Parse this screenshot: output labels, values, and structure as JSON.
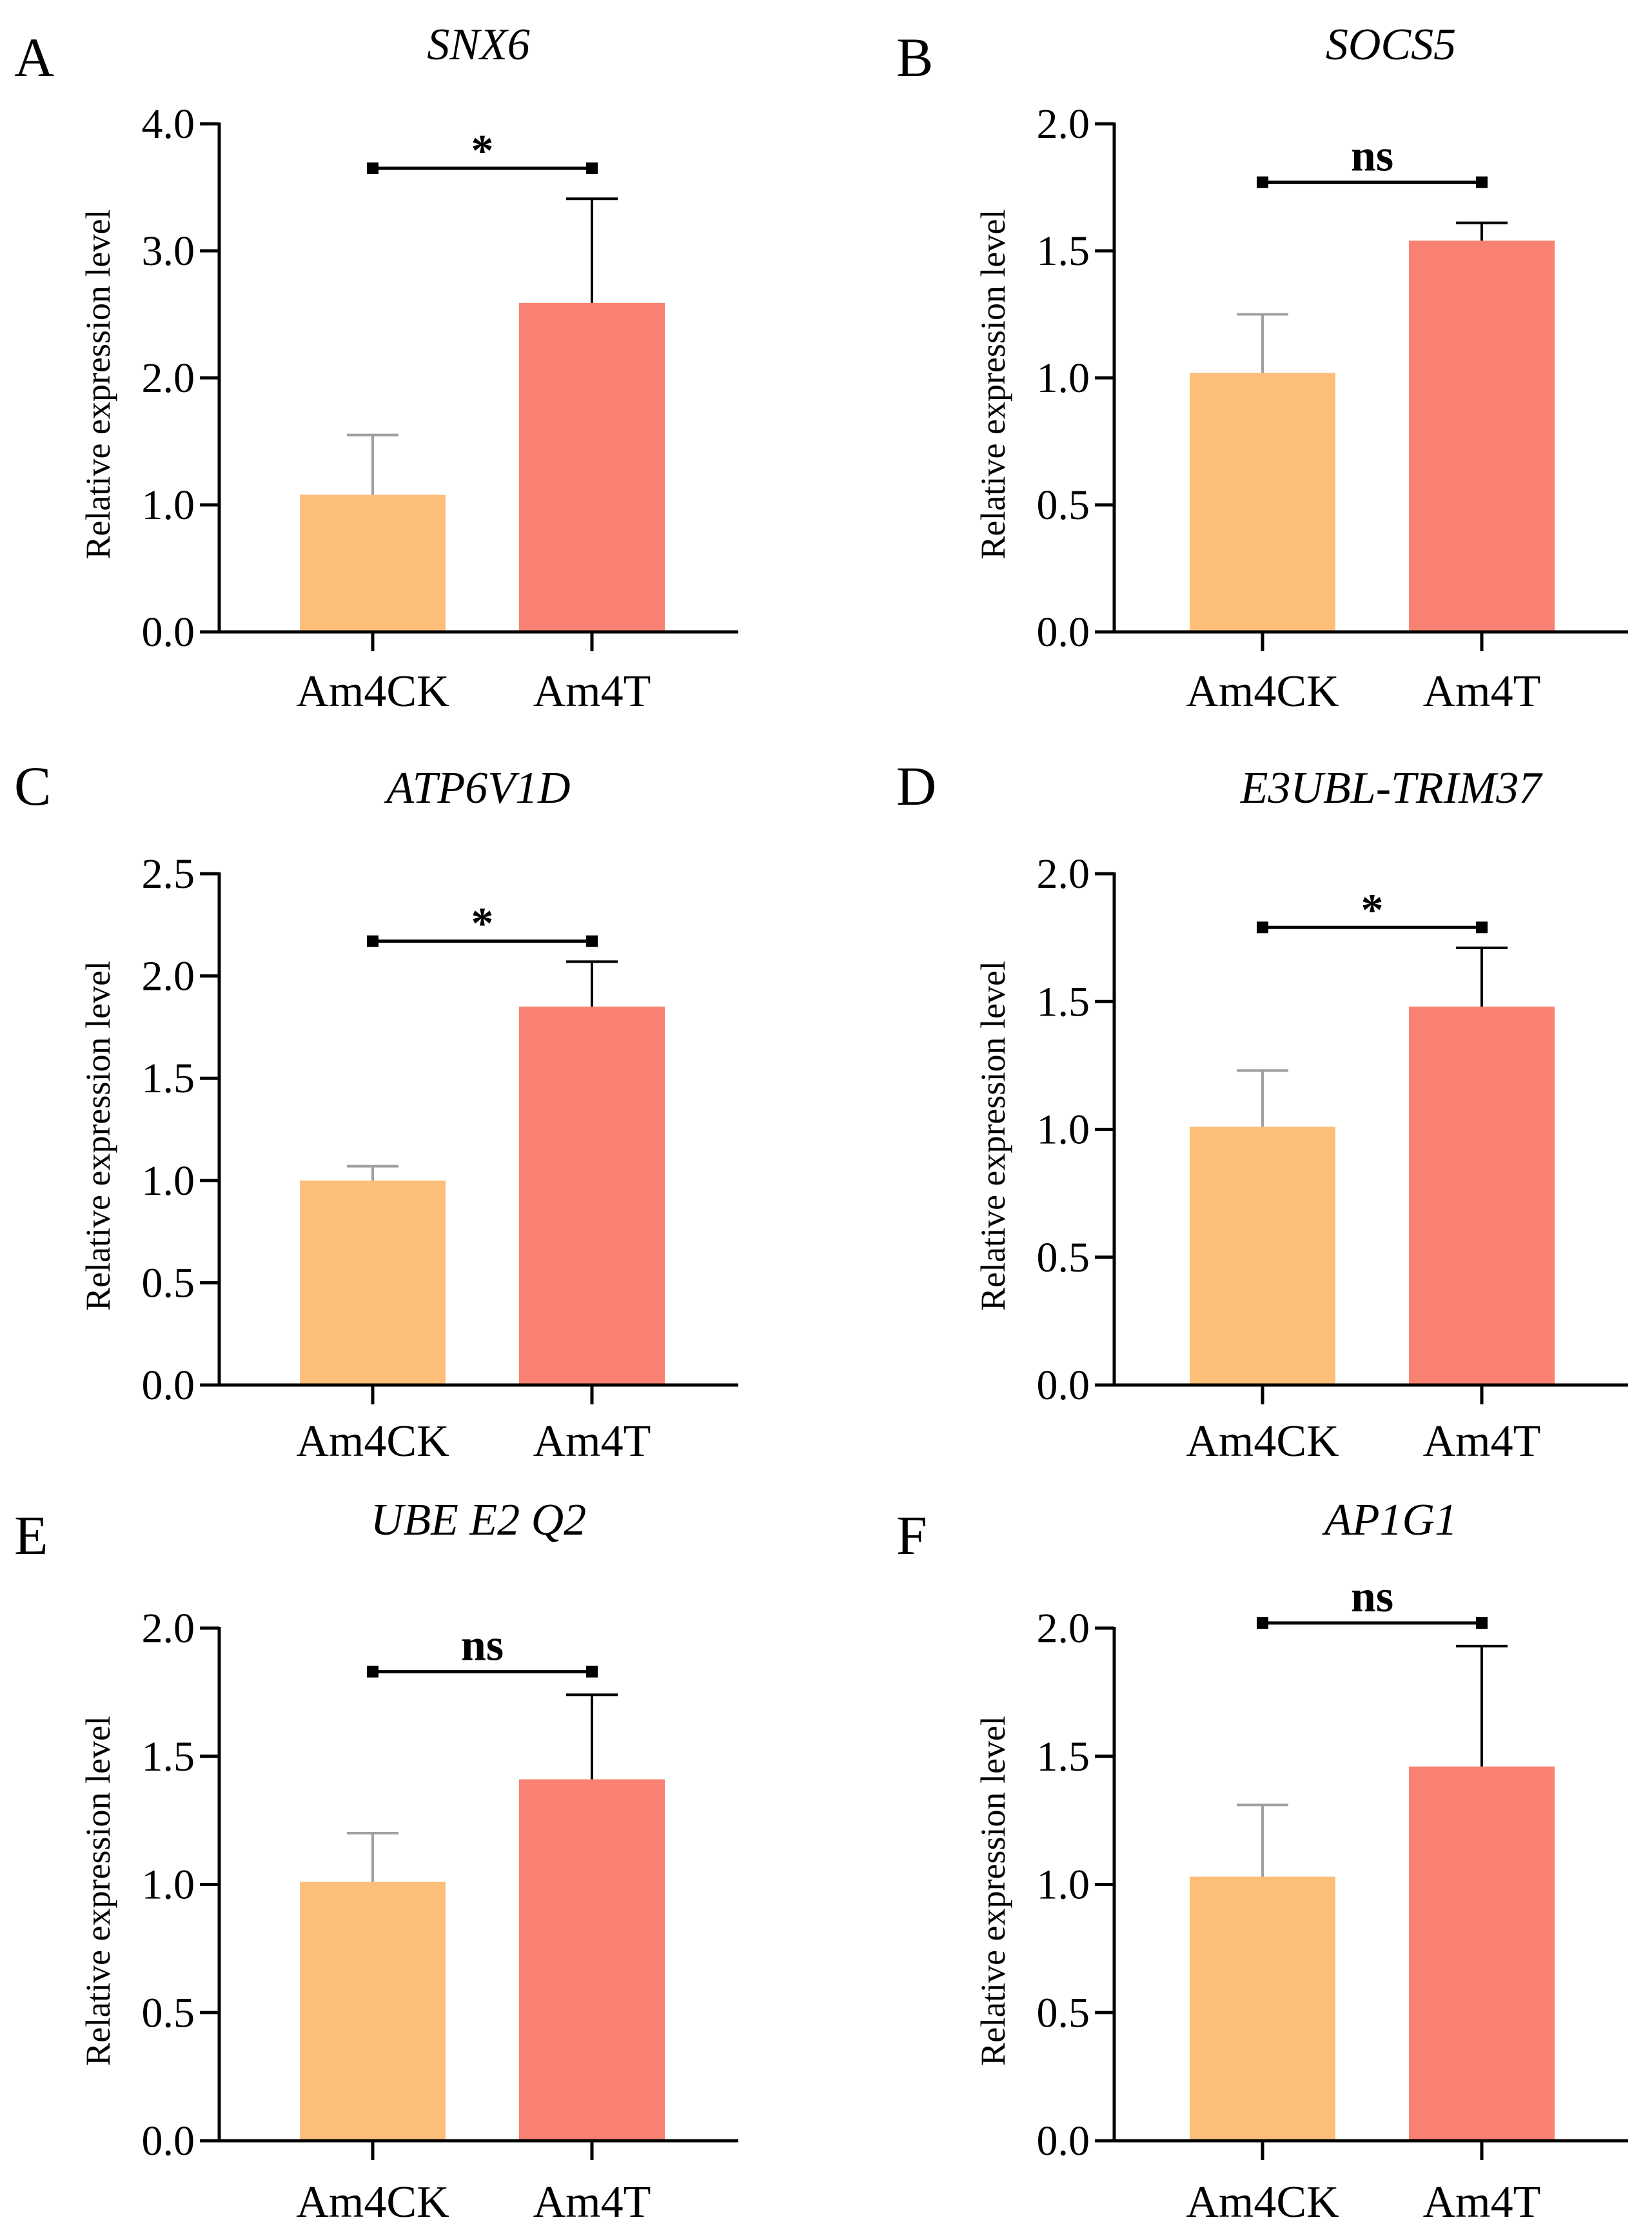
{
  "figure": {
    "categories": [
      "Am4CK",
      "Am4T"
    ],
    "ylabel": "Relative expression level",
    "colors": {
      "Am4CK": "#FDBE7A",
      "Am4T": "#F98171",
      "ck_error": "#A0A0A0",
      "t_error": "#000000",
      "axis": "#000000"
    }
  },
  "chart_data": [
    {
      "type": "bar",
      "panel": "A",
      "title": "SNX6",
      "categories": [
        "Am4CK",
        "Am4T"
      ],
      "values": [
        1.08,
        2.59
      ],
      "errors": [
        0.47,
        0.82
      ],
      "ylim": [
        0,
        4.0
      ],
      "yticks": [
        "0.0",
        "1.0",
        "2.0",
        "3.0",
        "4.0"
      ],
      "ylabel": "Relative expression level",
      "xlabel": "",
      "significance": {
        "label": "*",
        "y": 3.65
      }
    },
    {
      "type": "bar",
      "panel": "B",
      "title": "SOCS5",
      "categories": [
        "Am4CK",
        "Am4T"
      ],
      "values": [
        1.02,
        1.54
      ],
      "errors": [
        0.23,
        0.07
      ],
      "ylim": [
        0,
        2.0
      ],
      "yticks": [
        "0.0",
        "0.5",
        "1.0",
        "1.5",
        "2.0"
      ],
      "ylabel": "Relative expression level",
      "xlabel": "",
      "significance": {
        "label": "ns",
        "y": 1.77
      }
    },
    {
      "type": "bar",
      "panel": "C",
      "title": "ATP6V1D",
      "categories": [
        "Am4CK",
        "Am4T"
      ],
      "values": [
        1.0,
        1.85
      ],
      "errors": [
        0.07,
        0.22
      ],
      "ylim": [
        0,
        2.5
      ],
      "yticks": [
        "0.0",
        "0.5",
        "1.0",
        "1.5",
        "2.0",
        "2.5"
      ],
      "ylabel": "Relative expression level",
      "xlabel": "",
      "significance": {
        "label": "*",
        "y": 2.17
      }
    },
    {
      "type": "bar",
      "panel": "D",
      "title": "E3UBL-TRIM37",
      "categories": [
        "Am4CK",
        "Am4T"
      ],
      "values": [
        1.01,
        1.48
      ],
      "errors": [
        0.22,
        0.23
      ],
      "ylim": [
        0,
        2.0
      ],
      "yticks": [
        "0.0",
        "0.5",
        "1.0",
        "1.5",
        "2.0"
      ],
      "ylabel": "Relative expression level",
      "xlabel": "",
      "significance": {
        "label": "*",
        "y": 1.79
      }
    },
    {
      "type": "bar",
      "panel": "E",
      "title": "UBE E2 Q2",
      "categories": [
        "Am4CK",
        "Am4T"
      ],
      "values": [
        1.01,
        1.41
      ],
      "errors": [
        0.19,
        0.33
      ],
      "ylim": [
        0,
        2.0
      ],
      "yticks": [
        "0.0",
        "0.5",
        "1.0",
        "1.5",
        "2.0"
      ],
      "ylabel": "Relative expression level",
      "xlabel": "",
      "significance": {
        "label": "ns",
        "y": 1.83
      }
    },
    {
      "type": "bar",
      "panel": "F",
      "title": "AP1G1",
      "categories": [
        "Am4CK",
        "Am4T"
      ],
      "values": [
        1.03,
        1.46
      ],
      "errors": [
        0.28,
        0.47
      ],
      "ylim": [
        0,
        2.0
      ],
      "yticks": [
        "0.0",
        "0.5",
        "1.0",
        "1.5",
        "2.0"
      ],
      "ylabel": "Relative expression level",
      "xlabel": "",
      "significance": {
        "label": "ns",
        "y": 2.02
      }
    }
  ]
}
